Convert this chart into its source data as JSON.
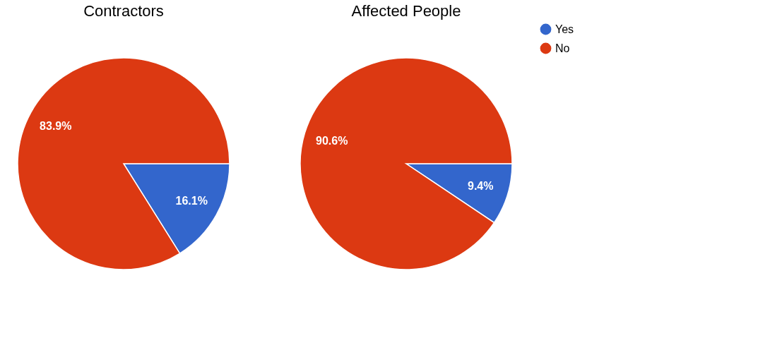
{
  "chart_data": [
    {
      "type": "pie",
      "title": "Contractors",
      "categories": [
        null,
        null
      ],
      "values": [
        16.1,
        83.9
      ],
      "colors": [
        "#3366cc",
        "#dc3912"
      ],
      "value_labels": [
        "16.1%",
        "83.9%"
      ],
      "legend": false
    },
    {
      "type": "pie",
      "title": "Affected People",
      "categories": [
        "Yes",
        "No"
      ],
      "values": [
        9.4,
        90.6
      ],
      "colors": [
        "#3366cc",
        "#dc3912"
      ],
      "value_labels": [
        "9.4%",
        "90.6%"
      ],
      "legend": "right"
    }
  ]
}
